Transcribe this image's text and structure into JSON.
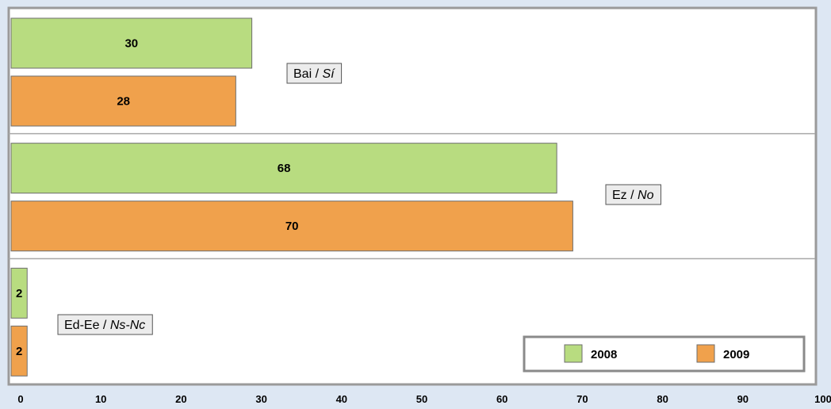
{
  "chart_data": {
    "type": "bar",
    "orientation": "horizontal",
    "categories": [
      {
        "main": "Bai / ",
        "italic": "Sí"
      },
      {
        "main": "Ez / ",
        "italic": "No"
      },
      {
        "main": "Ed-Ee / ",
        "italic": "Ns-Nc"
      }
    ],
    "series": [
      {
        "name": "2008",
        "color": "#b8dc80",
        "values": [
          30,
          68,
          2
        ]
      },
      {
        "name": "2009",
        "color": "#f0a14c",
        "values": [
          28,
          70,
          2
        ]
      }
    ],
    "xlim": [
      0,
      100
    ],
    "x_ticks": [
      "0",
      "10",
      "20",
      "30",
      "40",
      "50",
      "60",
      "70",
      "80",
      "90",
      "100"
    ],
    "title": "",
    "xlabel": "",
    "ylabel": "",
    "grid": "horizontal separators between categories",
    "legend_position": "bottom-right",
    "plot_background": "#ffffff",
    "page_background": "#dde7f3"
  }
}
